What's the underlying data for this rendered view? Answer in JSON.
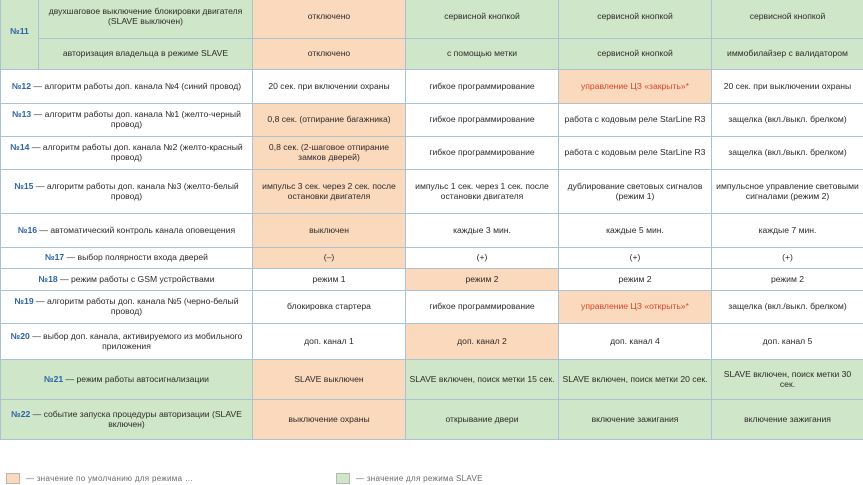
{
  "rows": [
    {
      "num": "№11",
      "desc_no": "",
      "desc_text": "двухшаговое выключение блокировки двигателя (SLAVE выключен)",
      "v1": "отключено",
      "v2": "сервисной кнопкой",
      "v3": "сервисной кнопкой",
      "v4": "сервисной кнопкой"
    },
    {
      "num": "",
      "desc_no": "",
      "desc_text": "авторизация владельца в режиме SLAVE",
      "v1": "отключено",
      "v2": "с помощью метки",
      "v3": "сервисной кнопкой",
      "v4": "иммобилайзер с валидатором"
    },
    {
      "desc_no": "№12",
      "desc_text": " — алгоритм работы доп. канала №4 (синий провод)",
      "v1": "20 сек. при включении охраны",
      "v2": "гибкое программирование",
      "v3": "управление ЦЗ «закрыть»*",
      "v4": "20 сек. при выключении охраны"
    },
    {
      "desc_no": "№13",
      "desc_text": " — алгоритм работы доп. канала №1 (желто-черный провод)",
      "v1": "0,8 сек. (отпирание багажника)",
      "v2": "гибкое программирование",
      "v3": "работа с кодовым реле StarLine R3",
      "v4": "защелка (вкл./выкл. брелком)"
    },
    {
      "desc_no": "№14",
      "desc_text": " — алгоритм работы доп. канала №2 (желто-красный провод)",
      "v1": "0,8 сек. (2-шаговое отпирание замков дверей)",
      "v2": "гибкое программирование",
      "v3": "работа с кодовым реле StarLine R3",
      "v4": "защелка (вкл./выкл. брелком)"
    },
    {
      "desc_no": "№15",
      "desc_text": " — алгоритм работы доп. канала №3 (желто-белый провод)",
      "v1": "импульс 3 сек. через 2 сек. после остановки двигателя",
      "v2": "импульс 1 сек. через 1 сек. после остановки двигателя",
      "v3": "дублирование световых сигналов (режим 1)",
      "v4": "импульсное управление световыми сигналами (режим 2)"
    },
    {
      "desc_no": "№16",
      "desc_text": " — автоматический контроль канала оповещения",
      "v1": "выключен",
      "v2": "каждые 3 мин.",
      "v3": "каждые 5 мин.",
      "v4": "каждые 7 мин."
    },
    {
      "desc_no": "№17",
      "desc_text": " — выбор полярности входа дверей",
      "v1": "(–)",
      "v2": "(+)",
      "v3": "(+)",
      "v4": "(+)"
    },
    {
      "desc_no": "№18",
      "desc_text": " — режим работы с GSM устройствами",
      "v1": "режим 1",
      "v2": "режим 2",
      "v3": "режим 2",
      "v4": "режим 2"
    },
    {
      "desc_no": "№19",
      "desc_text": " — алгоритм работы доп. канала №5 (черно-белый провод)",
      "v1": "блокировка стартера",
      "v2": "гибкое программирование",
      "v3": "управление ЦЗ «открыть»*",
      "v4": "защелка (вкл./выкл. брелком)"
    },
    {
      "desc_no": "№20",
      "desc_text": " — выбор доп. канала, активируемого из мобильного приложения",
      "v1": "доп. канал 1",
      "v2": "доп. канал 2",
      "v3": "доп. канал 4",
      "v4": "доп. канал 5"
    },
    {
      "desc_no": "№21",
      "desc_text": " — режим работы автосигнализации",
      "v1": "SLAVE выключен",
      "v2": "SLAVE включен, поиск метки 15 сек.",
      "v3": "SLAVE включен, поиск метки 20 сек.",
      "v4": "SLAVE включен, поиск метки 30 сек."
    },
    {
      "desc_no": "№22",
      "desc_text": " — событие запуска процедуры авторизации (SLAVE включен)",
      "v1": "выключение охраны",
      "v2": "открывание двери",
      "v3": "включение зажигания",
      "v4": "включение зажигания"
    }
  ],
  "legend": {
    "orange_text": "— значение по умолчанию для режима …",
    "green_text": "— значение для режима SLAVE"
  },
  "colors": {
    "border": "#a9c3d3",
    "number_blue": "#2b63a5",
    "default_orange": "#fbd9bd",
    "slave_green": "#cfe6c9",
    "warning_red": "#d9452b"
  }
}
